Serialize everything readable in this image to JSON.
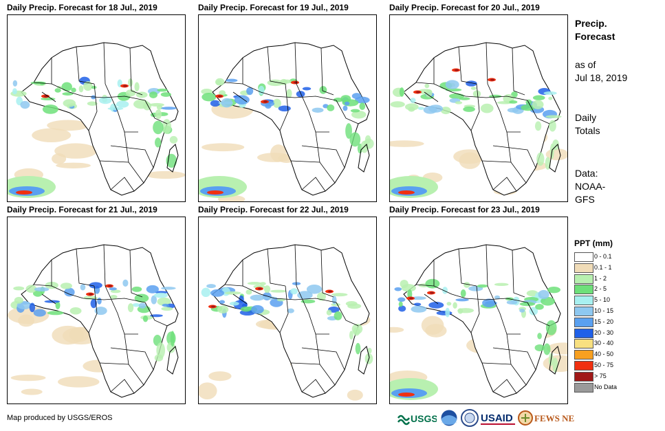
{
  "panels": [
    {
      "title": "Daily Precip. Forecast for 18 Jul., 2019"
    },
    {
      "title": "Daily Precip. Forecast for 19 Jul., 2019"
    },
    {
      "title": "Daily Precip. Forecast for 20 Jul., 2019"
    },
    {
      "title": "Daily Precip. Forecast for 21 Jul., 2019"
    },
    {
      "title": "Daily Precip. Forecast for 22 Jul., 2019"
    },
    {
      "title": "Daily Precip. Forecast for 23 Jul., 2019"
    }
  ],
  "side": {
    "title_line1": "Precip.",
    "title_line2": "Forecast",
    "asof_line1": "as of",
    "asof_line2": "Jul 18, 2019",
    "totals_line1": "Daily",
    "totals_line2": "Totals",
    "data_line1": "Data:",
    "data_line2": "NOAA-",
    "data_line3": "GFS"
  },
  "legend": {
    "title": "PPT (mm)",
    "items": [
      {
        "label": "0 - 0.1",
        "color": "#ffffff"
      },
      {
        "label": "0.1 - 1",
        "color": "#f0dcb8"
      },
      {
        "label": "1 - 2",
        "color": "#b8f0b0"
      },
      {
        "label": "2 - 5",
        "color": "#6ee07a"
      },
      {
        "label": "5 - 10",
        "color": "#a8f0f0"
      },
      {
        "label": "10 - 15",
        "color": "#8ec8f0"
      },
      {
        "label": "15 - 20",
        "color": "#5aa0f0"
      },
      {
        "label": "20 - 30",
        "color": "#2060e8"
      },
      {
        "label": "30 - 40",
        "color": "#f8e080"
      },
      {
        "label": "40 - 50",
        "color": "#f8a020"
      },
      {
        "label": "50 - 75",
        "color": "#f03010"
      },
      {
        "label": "> 75",
        "color": "#a01818"
      },
      {
        "label": "No Data",
        "color": "#9a9a9a"
      }
    ]
  },
  "footer": {
    "credit": "Map produced by USGS/EROS",
    "logos": {
      "usgs": "USGS",
      "usaid": "USAID",
      "fews": "FEWS NET"
    }
  }
}
